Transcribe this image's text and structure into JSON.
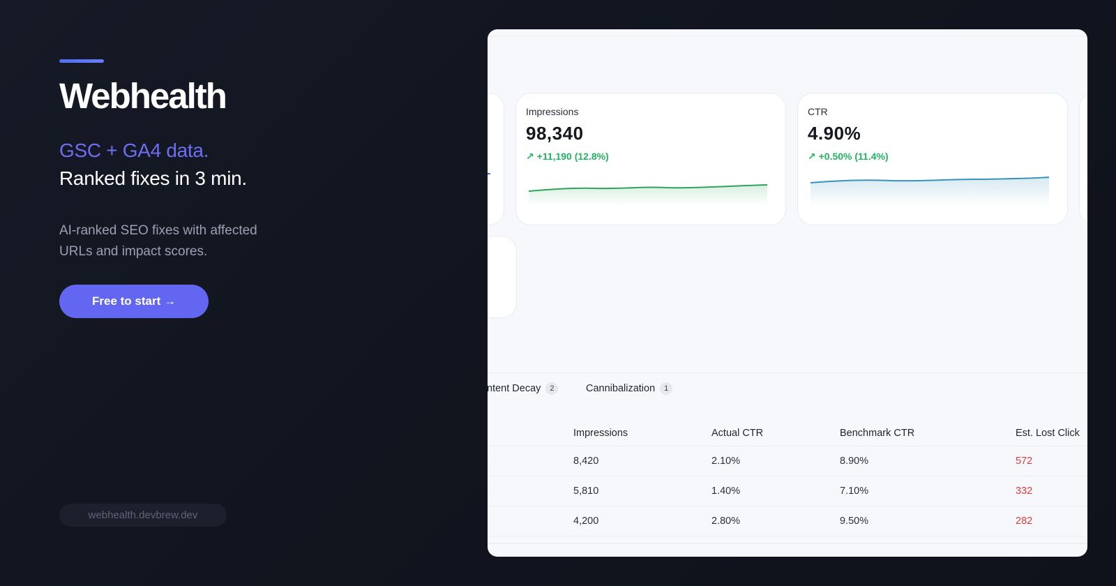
{
  "hero": {
    "brand": "Webhealth",
    "tagline_accent": "GSC + GA4 data.",
    "tagline_main": "Ranked fixes in 3 min.",
    "description": "AI-ranked SEO fixes with affected URLs and impact scores.",
    "cta_label": "Free to start →",
    "domain": "webhealth.devbrew.dev"
  },
  "colors": {
    "accent": "#6366f1",
    "positive": "#22b561",
    "negative": "#e03b3b"
  },
  "cards": {
    "impressions": {
      "label": "Impressions",
      "value": "98,340",
      "delta_icon": "trend-up-icon",
      "delta": "↗ +11,190 (12.8%)",
      "line_color": "#2ea55a"
    },
    "ctr": {
      "label": "CTR",
      "value": "4.90%",
      "delta_icon": "trend-up-icon",
      "delta": "↗ +0.50% (11.4%)",
      "line_color": "#3a93b8"
    }
  },
  "tabs": [
    {
      "label": "ntent Decay",
      "count": "2"
    },
    {
      "label": "Cannibalization",
      "count": "1"
    }
  ],
  "table": {
    "headers": [
      "Impressions",
      "Actual CTR",
      "Benchmark CTR",
      "Est. Lost Click"
    ],
    "rows": [
      [
        "8,420",
        "2.10%",
        "8.90%",
        "572"
      ],
      [
        "5,810",
        "1.40%",
        "7.10%",
        "332"
      ],
      [
        "4,200",
        "2.80%",
        "9.50%",
        "282"
      ]
    ]
  }
}
